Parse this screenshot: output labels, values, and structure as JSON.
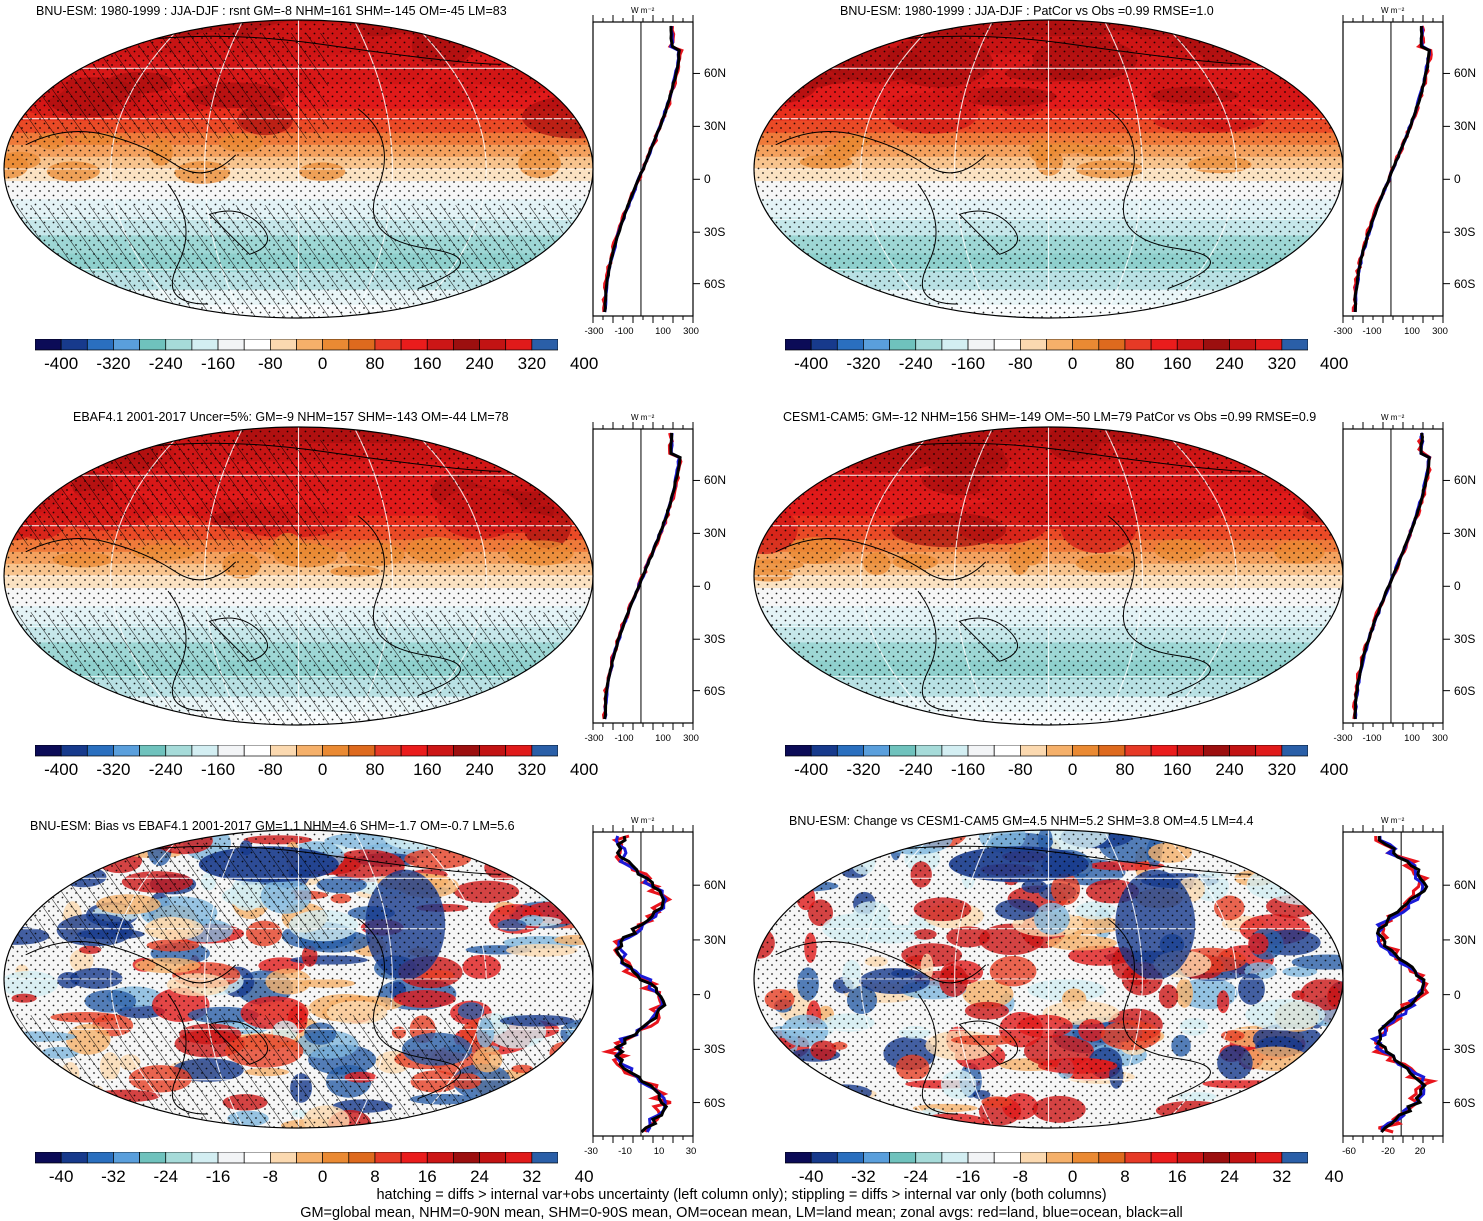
{
  "figure": {
    "caption_line1": "hatching = diffs > internal var+obs uncertainty (left column only); stippling = diffs > internal var only (both columns)",
    "caption_line2": "GM=global mean, NHM=0-90N mean, SHM=0-90S mean, OM=ocean mean, LM=land mean; zonal avgs: red=land, blue=ocean, black=all",
    "unit_label": "W m⁻²"
  },
  "colors": {
    "land": "#e8141c",
    "ocean": "#1a1ad8",
    "all": "#000000",
    "scale": [
      "#0b0b57",
      "#173a8c",
      "#2a6fbf",
      "#5a9fdc",
      "#6fc2bd",
      "#a6dbd9",
      "#d3eef2",
      "#f2f4f6",
      "#ffffff",
      "#fbd9b0",
      "#f5b06a",
      "#ea8a33",
      "#de6a1e",
      "#e63a26",
      "#ea1c1c",
      "#cc1616",
      "#9c0f0f",
      "#c21313",
      "#e01a1a",
      "#2a5fa8"
    ]
  },
  "colorbar_large": [
    "-400",
    "-320",
    "-240",
    "-160",
    "-80",
    "0",
    "80",
    "160",
    "240",
    "320",
    "400"
  ],
  "colorbar_small": [
    "-40",
    "-32",
    "-24",
    "-16",
    "-8",
    "0",
    "8",
    "16",
    "24",
    "32",
    "40"
  ],
  "lat_labels": [
    "60N",
    "30N",
    "0",
    "30S",
    "60S"
  ],
  "panels": [
    {
      "title": "BNU-ESM: 1980-1999 : JJA-DJF : rsnt GM=-8 NHM=161 SHM=-145 OM=-45 LM=83",
      "xticks": [
        "-300",
        "-100",
        "100",
        "300"
      ]
    },
    {
      "title": "BNU-ESM: 1980-1999 : JJA-DJF : PatCor vs Obs =0.99 RMSE=1.0",
      "xticks": [
        "-300",
        "-100",
        "100",
        "300"
      ]
    },
    {
      "title": "EBAF4.1 2001-2017 Uncer=5%: GM=-9 NHM=157 SHM=-143 OM=-44 LM=78",
      "xticks": [
        "-300",
        "-100",
        "100",
        "300"
      ]
    },
    {
      "title": "CESM1-CAM5: GM=-12 NHM=156 SHM=-149 OM=-50 LM=79 PatCor vs Obs =0.99 RMSE=0.9",
      "xticks": [
        "-300",
        "-100",
        "100",
        "300"
      ]
    },
    {
      "title": "BNU-ESM: Bias vs EBAF4.1 2001-2017 GM=1.1 NHM=4.6 SHM=-1.7 OM=-0.7 LM=5.6",
      "xticks": [
        "-30",
        "-10",
        "10",
        "30"
      ]
    },
    {
      "title": "BNU-ESM: Change vs CESM1-CAM5 GM=4.5 NHM=5.2 SHM=3.8 OM=4.5 LM=4.4",
      "xticks": [
        "-60",
        "-20",
        "20"
      ]
    }
  ]
}
